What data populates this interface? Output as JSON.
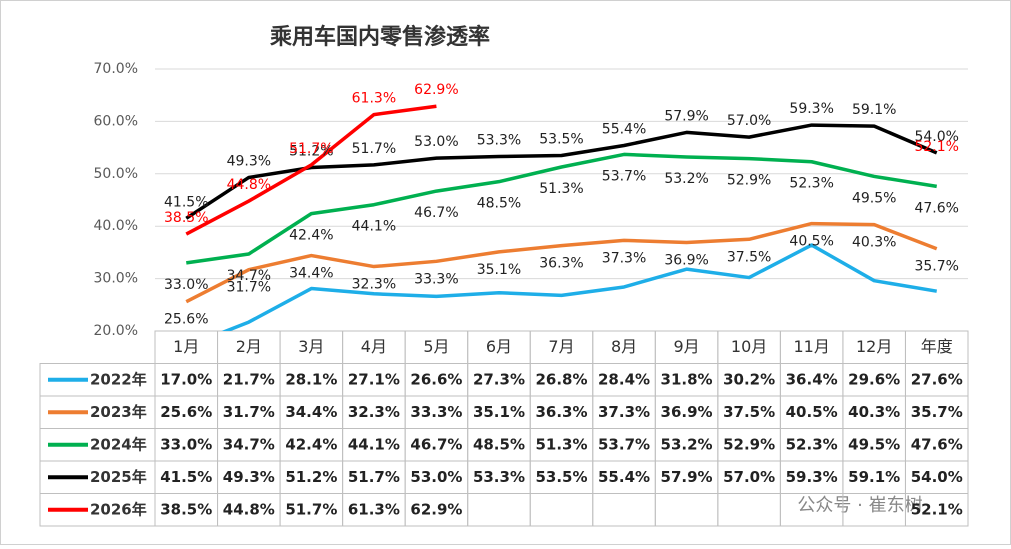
{
  "chart_data": {
    "type": "line",
    "title": "乘用车国内零售渗透率",
    "categories": [
      "1月",
      "2月",
      "3月",
      "4月",
      "5月",
      "6月",
      "7月",
      "8月",
      "9月",
      "10月",
      "11月",
      "12月",
      "年度"
    ],
    "ylim": [
      20,
      70
    ],
    "yticks": [
      {
        "value": 20,
        "label": "20.0%"
      },
      {
        "value": 30,
        "label": "30.0%"
      },
      {
        "value": 40,
        "label": "40.0%"
      },
      {
        "value": 50,
        "label": "50.0%"
      },
      {
        "value": 60,
        "label": "60.0%"
      },
      {
        "value": 70,
        "label": "70.0%"
      }
    ],
    "grid": true,
    "series": [
      {
        "name": "2022年",
        "color": "#1eaee8",
        "values": [
          17.0,
          21.7,
          28.1,
          27.1,
          26.6,
          27.3,
          26.8,
          28.4,
          31.8,
          30.2,
          36.4,
          29.6,
          27.6
        ],
        "value_labels": [
          "17.0%",
          "21.7%",
          "28.1%",
          "27.1%",
          "26.6%",
          "27.3%",
          "26.8%",
          "28.4%",
          "31.8%",
          "30.2%",
          "36.4%",
          "29.6%",
          "27.6%"
        ]
      },
      {
        "name": "2023年",
        "color": "#ed7d31",
        "values": [
          25.6,
          31.7,
          34.4,
          32.3,
          33.3,
          35.1,
          36.3,
          37.3,
          36.9,
          37.5,
          40.5,
          40.3,
          35.7
        ],
        "value_labels": [
          "25.6%",
          "31.7%",
          "34.4%",
          "32.3%",
          "33.3%",
          "35.1%",
          "36.3%",
          "37.3%",
          "36.9%",
          "37.5%",
          "40.5%",
          "40.3%",
          "35.7%"
        ]
      },
      {
        "name": "2024年",
        "color": "#00b050",
        "values": [
          33.0,
          34.7,
          42.4,
          44.1,
          46.7,
          48.5,
          51.3,
          53.7,
          53.2,
          52.9,
          52.3,
          49.5,
          47.6
        ],
        "value_labels": [
          "33.0%",
          "34.7%",
          "42.4%",
          "44.1%",
          "46.7%",
          "48.5%",
          "51.3%",
          "53.7%",
          "53.2%",
          "52.9%",
          "52.3%",
          "49.5%",
          "47.6%"
        ]
      },
      {
        "name": "2025年",
        "color": "#000000",
        "values": [
          41.5,
          49.3,
          51.2,
          51.7,
          53.0,
          53.3,
          53.5,
          55.4,
          57.9,
          57.0,
          59.3,
          59.1,
          54.0
        ],
        "value_labels": [
          "41.5%",
          "49.3%",
          "51.2%",
          "51.7%",
          "53.0%",
          "53.3%",
          "53.5%",
          "55.4%",
          "57.9%",
          "57.0%",
          "59.3%",
          "59.1%",
          "54.0%"
        ]
      },
      {
        "name": "2026年",
        "color": "#ff0000",
        "values": [
          38.5,
          44.8,
          51.7,
          61.3,
          62.9,
          null,
          null,
          null,
          null,
          null,
          null,
          null,
          52.1
        ],
        "value_labels": [
          "38.5%",
          "44.8%",
          "51.7%",
          "61.3%",
          "62.9%",
          null,
          null,
          null,
          null,
          null,
          null,
          null,
          "52.1%"
        ]
      }
    ],
    "watermark": "公众号 · 崔东树"
  }
}
